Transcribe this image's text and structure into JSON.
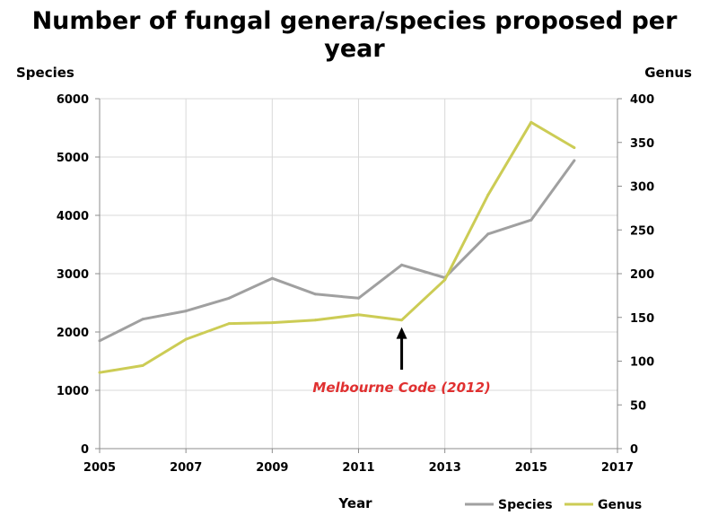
{
  "chart_data": {
    "type": "line",
    "title": "Number of fungal genera/species proposed per year",
    "xlabel": "Year",
    "ylabel_left": "Species",
    "ylabel_right": "Genus",
    "xlim": [
      2005,
      2017
    ],
    "ylim_left": [
      0,
      6000
    ],
    "ylim_right": [
      0,
      400
    ],
    "x_ticks": [
      2005,
      2007,
      2009,
      2011,
      2013,
      2015,
      2017
    ],
    "y_ticks_left": [
      0,
      1000,
      2000,
      3000,
      4000,
      5000,
      6000
    ],
    "y_ticks_right": [
      0,
      50,
      100,
      150,
      200,
      250,
      300,
      350,
      400
    ],
    "grid": true,
    "legend_position": "bottom-right",
    "x": [
      2005,
      2006,
      2007,
      2008,
      2009,
      2010,
      2011,
      2012,
      2013,
      2014,
      2015,
      2016
    ],
    "series": [
      {
        "name": "Species",
        "axis": "left",
        "color": "#a0a0a0",
        "values": [
          1850,
          2220,
          2360,
          2580,
          2920,
          2650,
          2580,
          3150,
          2930,
          3680,
          3920,
          4940
        ]
      },
      {
        "name": "Genus",
        "axis": "right",
        "color": "#cccc55",
        "values": [
          87,
          95,
          125,
          143,
          144,
          147,
          153,
          147,
          193,
          290,
          373,
          344
        ]
      }
    ],
    "annotation": {
      "text": "Melbourne Code (2012)",
      "x": 2012,
      "color": "#e03030"
    }
  }
}
